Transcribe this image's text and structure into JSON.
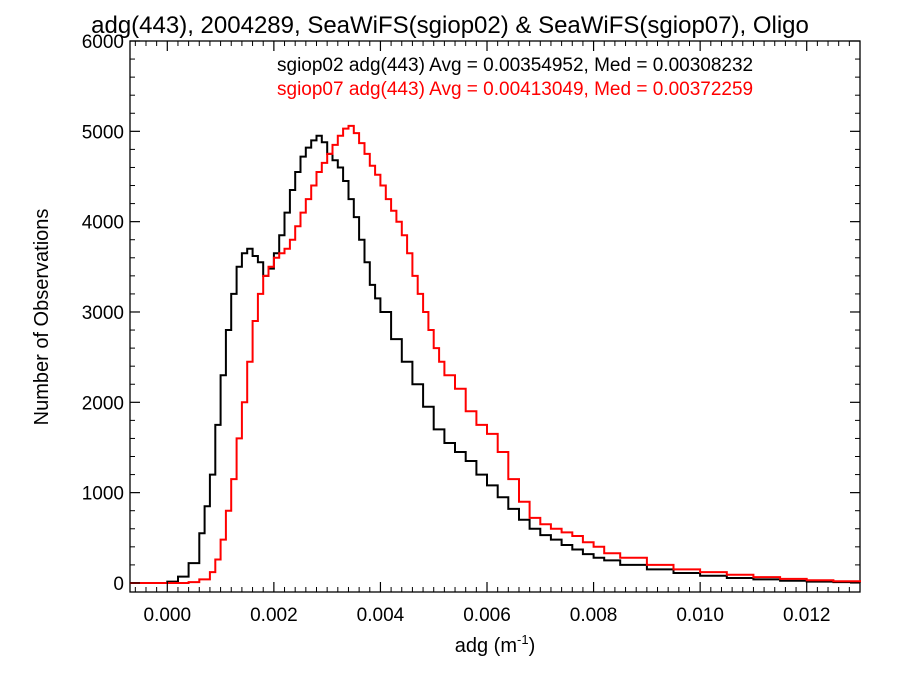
{
  "chart_data": {
    "type": "line",
    "title": "adg(443), 2004289, SeaWiFS(sgiop02) & SeaWiFS(sgiop07), Oligo",
    "xlabel": "adg (m",
    "xlabel_exp": "-1",
    "xlabel_close": ")",
    "ylabel": "Number of Observations",
    "xlim": [
      -0.0007,
      0.013
    ],
    "ylim": [
      -100,
      6000
    ],
    "x_ticks": [
      0.0,
      0.002,
      0.004,
      0.006,
      0.008,
      0.01,
      0.012
    ],
    "x_tick_labels": [
      "0.000",
      "0.002",
      "0.004",
      "0.006",
      "0.008",
      "0.010",
      "0.012"
    ],
    "y_ticks": [
      0,
      1000,
      2000,
      3000,
      4000,
      5000,
      6000
    ],
    "y_tick_labels": [
      "0",
      "1000",
      "2000",
      "3000",
      "4000",
      "5000",
      "6000"
    ],
    "grid": false,
    "series": [
      {
        "name": "sgiop02",
        "color": "#000000",
        "annotation": "sgiop02 adg(443) Avg = 0.00354952, Med = 0.00308232",
        "points": [
          [
            -0.0007,
            0
          ],
          [
            -0.0002,
            0
          ],
          [
            0.0,
            15
          ],
          [
            0.0002,
            70
          ],
          [
            0.0004,
            220
          ],
          [
            0.0006,
            550
          ],
          [
            0.0007,
            850
          ],
          [
            0.0008,
            1200
          ],
          [
            0.0009,
            1750
          ],
          [
            0.001,
            2300
          ],
          [
            0.0011,
            2800
          ],
          [
            0.0012,
            3200
          ],
          [
            0.0013,
            3500
          ],
          [
            0.0014,
            3650
          ],
          [
            0.0015,
            3700
          ],
          [
            0.0016,
            3620
          ],
          [
            0.0017,
            3550
          ],
          [
            0.0018,
            3400
          ],
          [
            0.0019,
            3480
          ],
          [
            0.002,
            3650
          ],
          [
            0.0021,
            3850
          ],
          [
            0.0022,
            4100
          ],
          [
            0.0023,
            4350
          ],
          [
            0.0024,
            4550
          ],
          [
            0.0025,
            4720
          ],
          [
            0.0026,
            4820
          ],
          [
            0.0027,
            4900
          ],
          [
            0.0028,
            4950
          ],
          [
            0.0029,
            4880
          ],
          [
            0.003,
            4750
          ],
          [
            0.0031,
            4680
          ],
          [
            0.0032,
            4600
          ],
          [
            0.0033,
            4450
          ],
          [
            0.0034,
            4250
          ],
          [
            0.0035,
            4050
          ],
          [
            0.0036,
            3800
          ],
          [
            0.0037,
            3550
          ],
          [
            0.0038,
            3300
          ],
          [
            0.0039,
            3150
          ],
          [
            0.004,
            3000
          ],
          [
            0.0042,
            2700
          ],
          [
            0.0044,
            2450
          ],
          [
            0.0046,
            2200
          ],
          [
            0.0048,
            1950
          ],
          [
            0.005,
            1700
          ],
          [
            0.0052,
            1550
          ],
          [
            0.0054,
            1450
          ],
          [
            0.0056,
            1350
          ],
          [
            0.0058,
            1200
          ],
          [
            0.006,
            1080
          ],
          [
            0.0062,
            950
          ],
          [
            0.0064,
            820
          ],
          [
            0.0066,
            700
          ],
          [
            0.0068,
            600
          ],
          [
            0.007,
            530
          ],
          [
            0.0072,
            480
          ],
          [
            0.0074,
            420
          ],
          [
            0.0076,
            370
          ],
          [
            0.0078,
            320
          ],
          [
            0.008,
            280
          ],
          [
            0.0082,
            250
          ],
          [
            0.0085,
            200
          ],
          [
            0.009,
            150
          ],
          [
            0.0095,
            110
          ],
          [
            0.01,
            80
          ],
          [
            0.0105,
            55
          ],
          [
            0.011,
            40
          ],
          [
            0.0115,
            25
          ],
          [
            0.012,
            15
          ],
          [
            0.0125,
            10
          ],
          [
            0.013,
            5
          ]
        ]
      },
      {
        "name": "sgiop07",
        "color": "#ff0000",
        "annotation": "sgiop07 adg(443) Avg = 0.00413049, Med = 0.00372259",
        "points": [
          [
            -0.0007,
            0
          ],
          [
            0.0002,
            0
          ],
          [
            0.0004,
            10
          ],
          [
            0.0006,
            40
          ],
          [
            0.0008,
            120
          ],
          [
            0.0009,
            260
          ],
          [
            0.001,
            480
          ],
          [
            0.0011,
            800
          ],
          [
            0.0012,
            1150
          ],
          [
            0.0013,
            1600
          ],
          [
            0.0014,
            2000
          ],
          [
            0.0015,
            2450
          ],
          [
            0.0016,
            2900
          ],
          [
            0.0017,
            3200
          ],
          [
            0.0018,
            3400
          ],
          [
            0.0019,
            3500
          ],
          [
            0.002,
            3600
          ],
          [
            0.0021,
            3650
          ],
          [
            0.0022,
            3700
          ],
          [
            0.0023,
            3800
          ],
          [
            0.0024,
            3950
          ],
          [
            0.0025,
            4100
          ],
          [
            0.0026,
            4250
          ],
          [
            0.0027,
            4400
          ],
          [
            0.0028,
            4550
          ],
          [
            0.0029,
            4650
          ],
          [
            0.003,
            4750
          ],
          [
            0.0031,
            4850
          ],
          [
            0.0032,
            4950
          ],
          [
            0.0033,
            5030
          ],
          [
            0.0034,
            5060
          ],
          [
            0.0035,
            4980
          ],
          [
            0.0036,
            4870
          ],
          [
            0.0037,
            4750
          ],
          [
            0.0038,
            4620
          ],
          [
            0.0039,
            4520
          ],
          [
            0.004,
            4400
          ],
          [
            0.0041,
            4250
          ],
          [
            0.0042,
            4120
          ],
          [
            0.0043,
            4000
          ],
          [
            0.0044,
            3850
          ],
          [
            0.0045,
            3650
          ],
          [
            0.0046,
            3400
          ],
          [
            0.0047,
            3200
          ],
          [
            0.0048,
            3000
          ],
          [
            0.0049,
            2800
          ],
          [
            0.005,
            2600
          ],
          [
            0.0051,
            2450
          ],
          [
            0.0052,
            2300
          ],
          [
            0.0054,
            2150
          ],
          [
            0.0056,
            1900
          ],
          [
            0.0058,
            1750
          ],
          [
            0.006,
            1650
          ],
          [
            0.0062,
            1450
          ],
          [
            0.0064,
            1150
          ],
          [
            0.0066,
            900
          ],
          [
            0.0068,
            720
          ],
          [
            0.007,
            650
          ],
          [
            0.0072,
            600
          ],
          [
            0.0074,
            560
          ],
          [
            0.0076,
            520
          ],
          [
            0.0078,
            450
          ],
          [
            0.008,
            400
          ],
          [
            0.0082,
            330
          ],
          [
            0.0085,
            280
          ],
          [
            0.009,
            200
          ],
          [
            0.0095,
            150
          ],
          [
            0.01,
            120
          ],
          [
            0.0105,
            90
          ],
          [
            0.011,
            65
          ],
          [
            0.0115,
            45
          ],
          [
            0.012,
            30
          ],
          [
            0.0125,
            20
          ],
          [
            0.013,
            10
          ]
        ]
      }
    ]
  }
}
